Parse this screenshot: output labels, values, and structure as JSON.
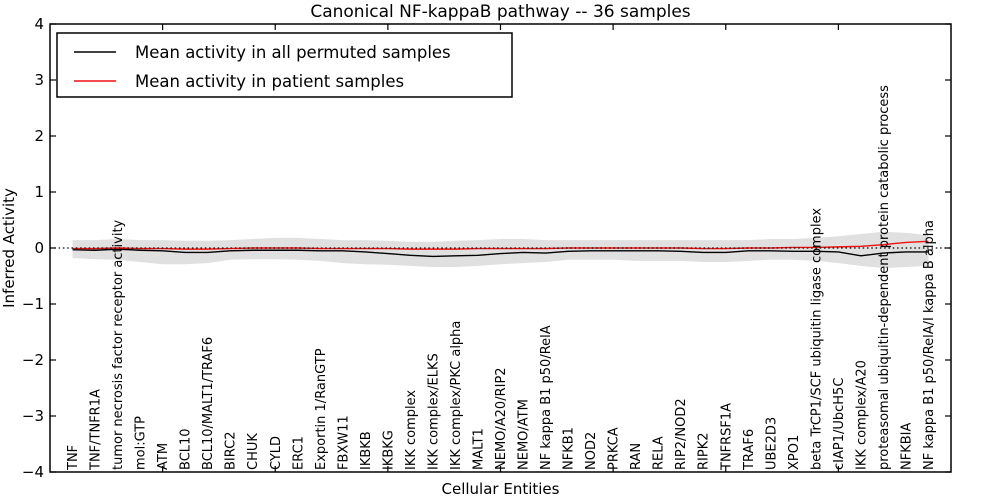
{
  "chart_data": {
    "type": "line",
    "title": "Canonical NF-kappaB pathway -- 36 samples",
    "xlabel": "Cellular Entities",
    "ylabel": "Inferred Activity",
    "ylim": [
      -4,
      4
    ],
    "xlim": [
      0,
      40
    ],
    "grid": false,
    "legend_position": "upper left",
    "ytick_values": [
      -4,
      -3,
      -2,
      -1,
      0,
      1,
      2,
      3,
      4
    ],
    "ytick_labels": [
      "−4",
      "−3",
      "−2",
      "−1",
      "0",
      "1",
      "2",
      "3",
      "4"
    ],
    "xtick_values": [
      5,
      10,
      15,
      20,
      25,
      30,
      35
    ],
    "categories": [
      "TNF",
      "TNF/TNFR1A",
      "tumor necrosis factor receptor activity",
      "mol:GTP",
      "ATM",
      "BCL10",
      "BCL10/MALT1/TRAF6",
      "BIRC2",
      "CHUK",
      "CYLD",
      "ERC1",
      "Exportin 1/RanGTP",
      "FBXW11",
      "IKBKB",
      "IKBKG",
      "IKK complex",
      "IKK complex/ELKS",
      "IKK complex/PKC alpha",
      "MALT1",
      "NEMO/A20/RIP2",
      "NEMO/ATM",
      "NF kappa B1 p50/RelA",
      "NFKB1",
      "NOD2",
      "PRKCA",
      "RAN",
      "RELA",
      "RIP2/NOD2",
      "RIPK2",
      "TNFRSF1A",
      "TRAF6",
      "UBE2D3",
      "XPO1",
      "beta TrCP1/SCF ubiquitin ligase complex",
      "cIAP1/UbcH5C",
      "IKK complex/A20",
      "proteasomal ubiquitin-dependent protein catabolic process",
      "NFKBIA",
      "NF kappa B1 p50/RelA/I kappa B alpha"
    ],
    "series": [
      {
        "name": "Mean activity in all permuted samples",
        "color": "#000000",
        "values": [
          -0.03,
          -0.04,
          -0.02,
          -0.04,
          -0.05,
          -0.08,
          -0.08,
          -0.05,
          -0.04,
          -0.04,
          -0.04,
          -0.05,
          -0.05,
          -0.07,
          -0.1,
          -0.13,
          -0.15,
          -0.14,
          -0.13,
          -0.1,
          -0.08,
          -0.09,
          -0.06,
          -0.05,
          -0.05,
          -0.05,
          -0.05,
          -0.06,
          -0.08,
          -0.08,
          -0.05,
          -0.05,
          -0.06,
          -0.06,
          -0.07,
          -0.14,
          -0.09,
          -0.07,
          -0.07
        ]
      },
      {
        "name": "Mean activity in patient samples",
        "color": "#f01010",
        "values": [
          -0.01,
          -0.01,
          0.0,
          -0.01,
          -0.01,
          -0.02,
          -0.02,
          -0.01,
          0.0,
          0.0,
          0.0,
          -0.01,
          -0.01,
          -0.01,
          -0.01,
          -0.02,
          -0.02,
          -0.02,
          -0.01,
          -0.01,
          -0.01,
          -0.01,
          0.0,
          0.0,
          0.0,
          0.0,
          0.0,
          0.0,
          -0.01,
          -0.01,
          0.0,
          0.0,
          0.01,
          0.01,
          0.02,
          0.03,
          0.06,
          0.1,
          0.12
        ]
      }
    ],
    "band": {
      "name": "permuted-samples-spread",
      "color": "#e0e0e0",
      "upper": [
        0.14,
        0.14,
        0.16,
        0.14,
        0.14,
        0.13,
        0.13,
        0.14,
        0.16,
        0.18,
        0.18,
        0.16,
        0.14,
        0.14,
        0.13,
        0.11,
        0.11,
        0.13,
        0.14,
        0.16,
        0.16,
        0.14,
        0.14,
        0.14,
        0.14,
        0.14,
        0.14,
        0.14,
        0.14,
        0.14,
        0.14,
        0.16,
        0.16,
        0.18,
        0.21,
        0.25,
        0.29,
        0.27,
        0.23
      ],
      "lower": [
        -0.18,
        -0.2,
        -0.21,
        -0.25,
        -0.29,
        -0.29,
        -0.27,
        -0.21,
        -0.2,
        -0.2,
        -0.21,
        -0.23,
        -0.27,
        -0.29,
        -0.3,
        -0.32,
        -0.34,
        -0.34,
        -0.32,
        -0.29,
        -0.27,
        -0.25,
        -0.21,
        -0.21,
        -0.21,
        -0.23,
        -0.23,
        -0.23,
        -0.25,
        -0.25,
        -0.23,
        -0.21,
        -0.21,
        -0.23,
        -0.27,
        -0.32,
        -0.36,
        -0.34,
        -0.32
      ]
    },
    "zero_line": {
      "y": 0,
      "style": "dotted",
      "color": "#000000"
    },
    "colors": {
      "frame": "#000000",
      "background": "#ffffff",
      "band": "#e0e0e0",
      "permuted_line": "#000000",
      "patient_line": "#f01010"
    }
  }
}
